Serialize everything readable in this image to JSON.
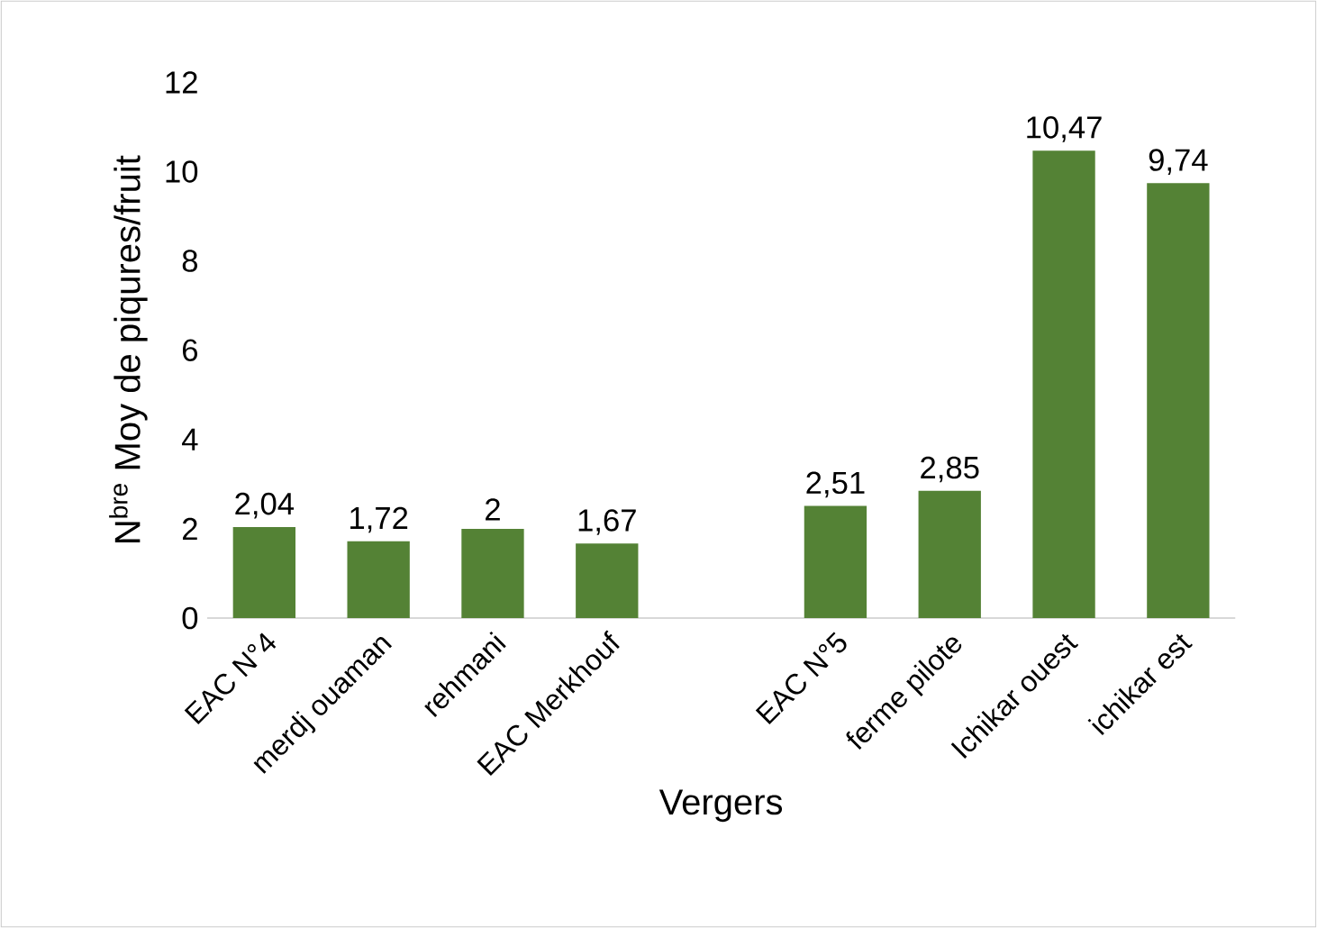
{
  "chart_data": {
    "type": "bar",
    "ylabel": "N$^{bre}$ Moy de piqures/fruit",
    "xlabel": "Vergers",
    "categories": [
      "EAC N°4",
      "merdj ouaman",
      "rehmani",
      "EAC Merkhouf",
      null,
      "EAC N°5",
      "ferme pilote",
      "Ichikar ouest",
      "ichikar est"
    ],
    "values": [
      2.04,
      1.72,
      2,
      1.67,
      null,
      2.51,
      2.85,
      10.47,
      9.74
    ],
    "value_labels": [
      "2,04",
      "1,72",
      "2",
      "1,67",
      null,
      "2,51",
      "2,85",
      "10,47",
      "9,74"
    ],
    "color": "#548235",
    "ylim": [
      0,
      12
    ],
    "yticks": [
      0,
      2,
      4,
      6,
      8,
      10,
      12
    ],
    "grid": false
  }
}
